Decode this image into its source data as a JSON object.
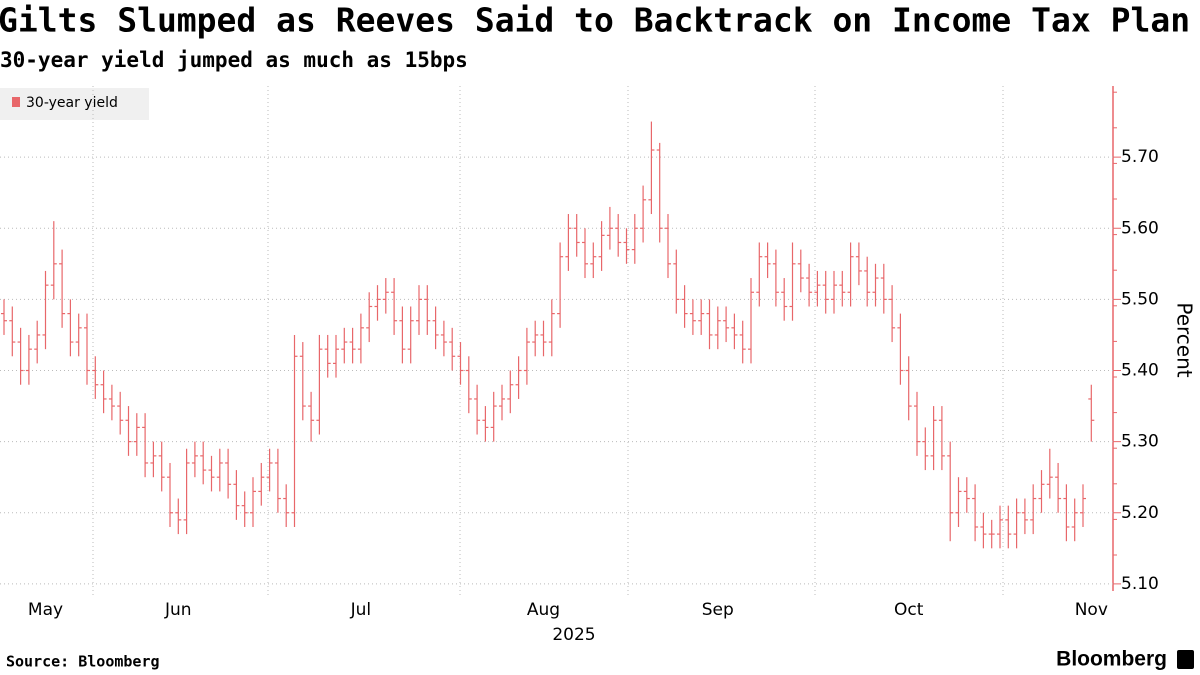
{
  "chart_data": {
    "type": "ohlc",
    "title": "Gilts Slumped as Reeves Said to Backtrack on Income Tax Plan",
    "subtitle": "30-year yield jumped as much as 15bps",
    "y_label": "Percent",
    "x_label": "2025",
    "source": "Source: Bloomberg",
    "brand": "Bloomberg",
    "legend_position": "upper left",
    "ylim": [
      5.09,
      5.8
    ],
    "yticks": [
      {
        "value": 5.1,
        "label": "5.10"
      },
      {
        "value": 5.2,
        "label": "5.20"
      },
      {
        "value": 5.3,
        "label": "5.30"
      },
      {
        "value": 5.4,
        "label": "5.40"
      },
      {
        "value": 5.5,
        "label": "5.50"
      },
      {
        "value": 5.6,
        "label": "5.60"
      },
      {
        "value": 5.7,
        "label": "5.70"
      }
    ],
    "categories": [
      null,
      null,
      null,
      null,
      null,
      "May",
      null,
      null,
      null,
      null,
      null,
      null,
      null,
      null,
      null,
      null,
      null,
      null,
      null,
      null,
      null,
      "Jun",
      null,
      null,
      null,
      null,
      null,
      null,
      null,
      null,
      null,
      null,
      null,
      null,
      null,
      null,
      null,
      null,
      null,
      null,
      null,
      null,
      null,
      "Jul",
      null,
      null,
      null,
      null,
      null,
      null,
      null,
      null,
      null,
      null,
      null,
      null,
      null,
      null,
      null,
      null,
      null,
      null,
      null,
      null,
      null,
      "Aug",
      null,
      null,
      null,
      null,
      null,
      null,
      null,
      null,
      null,
      null,
      null,
      null,
      null,
      null,
      null,
      null,
      null,
      null,
      null,
      null,
      "Sep",
      null,
      null,
      null,
      null,
      null,
      null,
      null,
      null,
      null,
      null,
      null,
      null,
      null,
      null,
      null,
      null,
      null,
      null,
      null,
      null,
      null,
      null,
      "Oct",
      null,
      null,
      null,
      null,
      null,
      null,
      null,
      null,
      null,
      null,
      null,
      null,
      null,
      null,
      null,
      null,
      null,
      null,
      null,
      null,
      null,
      "Nov"
    ],
    "series": [
      {
        "name": "30-year yield",
        "color": "#e8676a",
        "open": [
          5.48,
          5.47,
          5.44,
          5.4,
          5.43,
          5.45,
          5.52,
          5.55,
          5.48,
          5.44,
          5.46,
          5.4,
          5.38,
          5.36,
          5.35,
          5.33,
          5.3,
          5.32,
          5.27,
          5.28,
          5.25,
          5.2,
          5.19,
          5.27,
          5.28,
          5.26,
          5.25,
          5.27,
          5.24,
          5.21,
          5.2,
          5.23,
          5.25,
          5.27,
          5.22,
          5.2,
          5.42,
          5.35,
          5.33,
          5.43,
          5.41,
          5.43,
          5.44,
          5.43,
          5.46,
          5.49,
          5.5,
          5.51,
          5.47,
          5.43,
          5.47,
          5.5,
          5.47,
          5.45,
          5.44,
          5.42,
          5.4,
          5.36,
          5.33,
          5.32,
          5.35,
          5.36,
          5.38,
          5.4,
          5.44,
          5.45,
          5.44,
          5.48,
          5.56,
          5.6,
          5.58,
          5.55,
          5.56,
          5.59,
          5.6,
          5.58,
          5.57,
          5.6,
          5.64,
          5.71,
          5.6,
          5.55,
          5.5,
          5.48,
          5.47,
          5.48,
          5.45,
          5.47,
          5.46,
          5.45,
          5.43,
          5.51,
          5.56,
          5.55,
          5.51,
          5.49,
          5.55,
          5.53,
          5.51,
          5.52,
          5.5,
          5.52,
          5.51,
          5.56,
          5.54,
          5.51,
          5.53,
          5.5,
          5.46,
          5.4,
          5.35,
          5.3,
          5.28,
          5.33,
          5.28,
          5.2,
          5.23,
          5.22,
          5.18,
          5.17,
          5.17,
          5.19,
          5.17,
          5.2,
          5.19,
          5.22,
          5.24,
          5.25,
          5.22,
          5.18,
          5.2,
          5.36
        ],
        "high": [
          5.5,
          5.49,
          5.46,
          5.45,
          5.47,
          5.54,
          5.61,
          5.57,
          5.5,
          5.48,
          5.48,
          5.42,
          5.4,
          5.38,
          5.37,
          5.35,
          5.34,
          5.34,
          5.3,
          5.3,
          5.27,
          5.22,
          5.29,
          5.3,
          5.3,
          5.28,
          5.29,
          5.29,
          5.26,
          5.23,
          5.25,
          5.27,
          5.29,
          5.29,
          5.24,
          5.45,
          5.44,
          5.37,
          5.45,
          5.45,
          5.45,
          5.46,
          5.46,
          5.48,
          5.51,
          5.52,
          5.53,
          5.53,
          5.49,
          5.49,
          5.52,
          5.52,
          5.49,
          5.47,
          5.46,
          5.44,
          5.42,
          5.38,
          5.35,
          5.37,
          5.38,
          5.4,
          5.42,
          5.46,
          5.47,
          5.47,
          5.5,
          5.58,
          5.62,
          5.62,
          5.6,
          5.58,
          5.61,
          5.63,
          5.62,
          5.6,
          5.62,
          5.66,
          5.75,
          5.72,
          5.62,
          5.57,
          5.52,
          5.5,
          5.5,
          5.5,
          5.49,
          5.49,
          5.48,
          5.47,
          5.53,
          5.58,
          5.58,
          5.57,
          5.53,
          5.58,
          5.57,
          5.55,
          5.54,
          5.54,
          5.54,
          5.54,
          5.58,
          5.58,
          5.56,
          5.55,
          5.55,
          5.52,
          5.48,
          5.42,
          5.37,
          5.32,
          5.35,
          5.35,
          5.3,
          5.25,
          5.25,
          5.24,
          5.2,
          5.19,
          5.21,
          5.21,
          5.22,
          5.22,
          5.24,
          5.26,
          5.29,
          5.27,
          5.24,
          5.22,
          5.24,
          5.38
        ],
        "low": [
          5.45,
          5.42,
          5.38,
          5.38,
          5.41,
          5.43,
          5.5,
          5.46,
          5.42,
          5.42,
          5.38,
          5.36,
          5.34,
          5.33,
          5.31,
          5.28,
          5.28,
          5.25,
          5.25,
          5.23,
          5.18,
          5.17,
          5.17,
          5.25,
          5.24,
          5.23,
          5.23,
          5.22,
          5.19,
          5.18,
          5.18,
          5.21,
          5.23,
          5.2,
          5.18,
          5.18,
          5.33,
          5.3,
          5.31,
          5.39,
          5.39,
          5.41,
          5.41,
          5.41,
          5.44,
          5.47,
          5.48,
          5.45,
          5.41,
          5.41,
          5.45,
          5.45,
          5.43,
          5.42,
          5.4,
          5.38,
          5.34,
          5.31,
          5.3,
          5.3,
          5.33,
          5.34,
          5.36,
          5.38,
          5.42,
          5.42,
          5.42,
          5.46,
          5.54,
          5.56,
          5.53,
          5.53,
          5.54,
          5.57,
          5.56,
          5.55,
          5.55,
          5.58,
          5.62,
          5.58,
          5.53,
          5.48,
          5.46,
          5.45,
          5.45,
          5.43,
          5.43,
          5.44,
          5.43,
          5.41,
          5.41,
          5.49,
          5.53,
          5.49,
          5.47,
          5.47,
          5.51,
          5.49,
          5.49,
          5.48,
          5.48,
          5.49,
          5.49,
          5.52,
          5.49,
          5.49,
          5.48,
          5.44,
          5.38,
          5.33,
          5.28,
          5.26,
          5.26,
          5.26,
          5.16,
          5.18,
          5.2,
          5.16,
          5.15,
          5.15,
          5.15,
          5.15,
          5.15,
          5.17,
          5.17,
          5.2,
          5.22,
          5.2,
          5.16,
          5.16,
          5.18,
          5.3
        ],
        "close": [
          5.47,
          5.44,
          5.4,
          5.43,
          5.45,
          5.52,
          5.55,
          5.48,
          5.44,
          5.46,
          5.4,
          5.38,
          5.36,
          5.35,
          5.33,
          5.3,
          5.32,
          5.27,
          5.28,
          5.25,
          5.2,
          5.19,
          5.27,
          5.28,
          5.26,
          5.25,
          5.27,
          5.24,
          5.21,
          5.2,
          5.23,
          5.25,
          5.27,
          5.22,
          5.2,
          5.42,
          5.35,
          5.33,
          5.43,
          5.41,
          5.43,
          5.44,
          5.43,
          5.46,
          5.49,
          5.5,
          5.51,
          5.47,
          5.43,
          5.47,
          5.5,
          5.47,
          5.45,
          5.44,
          5.42,
          5.4,
          5.36,
          5.33,
          5.32,
          5.35,
          5.36,
          5.38,
          5.4,
          5.44,
          5.45,
          5.44,
          5.48,
          5.56,
          5.6,
          5.58,
          5.55,
          5.56,
          5.59,
          5.6,
          5.58,
          5.57,
          5.6,
          5.64,
          5.71,
          5.6,
          5.55,
          5.5,
          5.48,
          5.47,
          5.48,
          5.45,
          5.47,
          5.46,
          5.45,
          5.43,
          5.51,
          5.56,
          5.55,
          5.51,
          5.49,
          5.55,
          5.53,
          5.51,
          5.52,
          5.5,
          5.52,
          5.51,
          5.56,
          5.54,
          5.51,
          5.53,
          5.5,
          5.46,
          5.4,
          5.35,
          5.3,
          5.28,
          5.33,
          5.28,
          5.2,
          5.23,
          5.22,
          5.18,
          5.17,
          5.17,
          5.19,
          5.17,
          5.2,
          5.19,
          5.22,
          5.24,
          5.25,
          5.22,
          5.18,
          5.2,
          5.22,
          5.33
        ]
      }
    ]
  }
}
